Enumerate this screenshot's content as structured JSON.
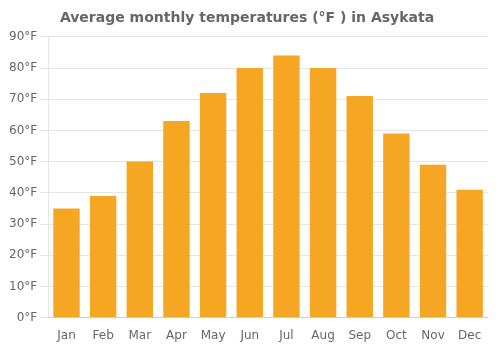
{
  "chart_data": {
    "type": "bar",
    "title": "Average monthly temperatures (°F ) in Asykata",
    "categories": [
      "Jan",
      "Feb",
      "Mar",
      "Apr",
      "May",
      "Jun",
      "Jul",
      "Aug",
      "Sep",
      "Oct",
      "Nov",
      "Dec"
    ],
    "values": [
      35,
      39,
      50,
      63,
      72,
      80,
      84,
      80,
      71,
      59,
      49,
      41
    ],
    "color": "#F5A623",
    "ylim": [
      0,
      90
    ],
    "yticks": [
      {
        "value": 0,
        "label": "0°F"
      },
      {
        "value": 10,
        "label": "10°F"
      },
      {
        "value": 20,
        "label": "20°F"
      },
      {
        "value": 30,
        "label": "30°F"
      },
      {
        "value": 40,
        "label": "40°F"
      },
      {
        "value": 50,
        "label": "50°F"
      },
      {
        "value": 60,
        "label": "60°F"
      },
      {
        "value": 70,
        "label": "70°F"
      },
      {
        "value": 80,
        "label": "80°F"
      },
      {
        "value": 90,
        "label": "90°F"
      }
    ],
    "grid": true
  }
}
